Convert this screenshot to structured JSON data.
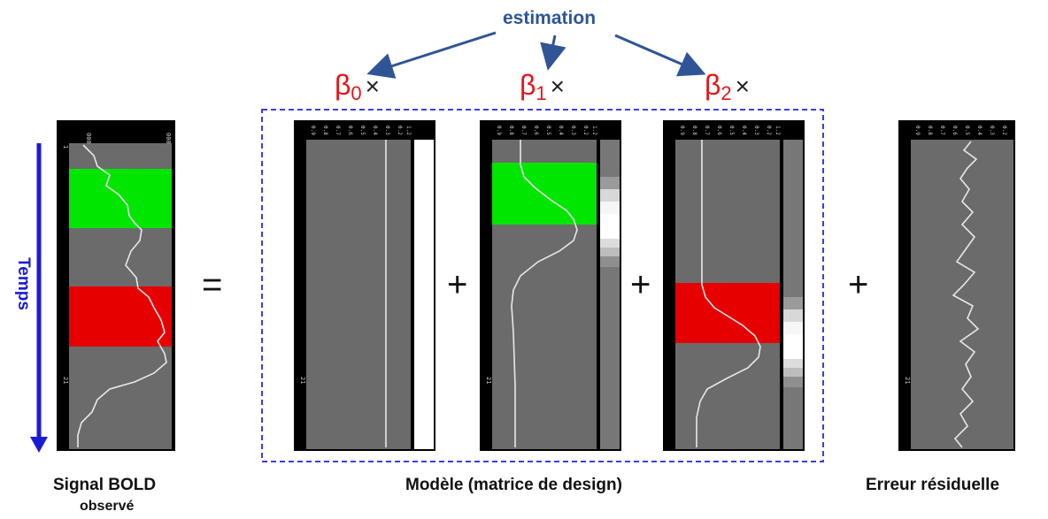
{
  "estimation_label": "estimation",
  "time_axis_label": "Temps",
  "operators": {
    "equals": "=",
    "plus": "+"
  },
  "betas": [
    {
      "symbol": "β",
      "subscript": "0",
      "times": "×"
    },
    {
      "symbol": "β",
      "subscript": "1",
      "times": "×"
    },
    {
      "symbol": "β",
      "subscript": "2",
      "times": "×"
    }
  ],
  "captions": {
    "signal_line1": "Signal BOLD",
    "signal_line2": "observé",
    "model": "Modèle (matrice de design)",
    "residual": "Erreur résiduelle"
  },
  "colors": {
    "condition_a": "#00e600",
    "condition_b": "#e60000",
    "panel_bg": "#6b6b6b",
    "arrow": "#2f5597",
    "model_box": "#3c3cf0",
    "time_arrow": "#1b1bd6"
  }
}
